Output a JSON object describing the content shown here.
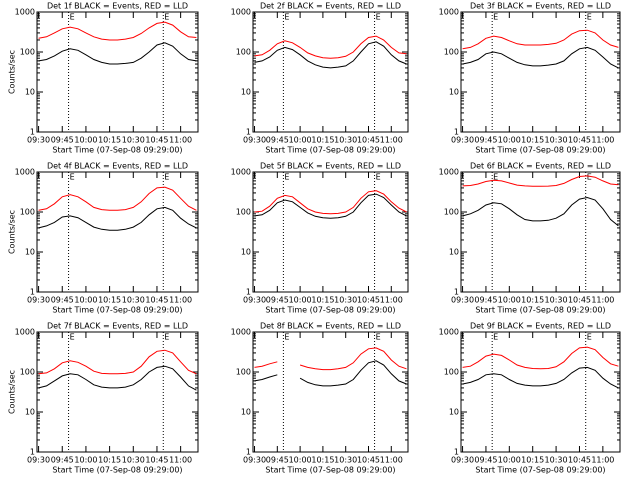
{
  "chart_data": [
    {
      "type": "line",
      "title": "Det 1f BLACK = Events, RED = LLD",
      "xlabel": "Start Time (07-Sep-08 09:29:00)",
      "ylabel": "Counts/sec",
      "ylog": true,
      "xlim": [
        "09:29",
        "11:11"
      ],
      "xticks": [
        "09:30",
        "09:45",
        "10:00",
        "10:15",
        "10:30",
        "10:45",
        "11:00"
      ],
      "ylim": [
        1,
        1000
      ],
      "yticks": [
        1,
        10,
        100,
        1000
      ],
      "annotations": [
        {
          "x": "09:49",
          "text": "E"
        },
        {
          "x": "10:49",
          "text": "E"
        }
      ],
      "x": [
        "09:30",
        "09:35",
        "09:40",
        "09:45",
        "09:50",
        "09:55",
        "10:00",
        "10:05",
        "10:10",
        "10:15",
        "10:20",
        "10:25",
        "10:30",
        "10:35",
        "10:40",
        "10:45",
        "10:50",
        "10:55",
        "11:00",
        "11:05",
        "11:10"
      ],
      "series": [
        {
          "color": "#000000",
          "values": [
            60,
            65,
            80,
            105,
            120,
            110,
            85,
            65,
            55,
            50,
            50,
            52,
            55,
            70,
            100,
            150,
            170,
            140,
            90,
            65,
            60
          ]
        },
        {
          "color": "#ff0000",
          "values": [
            220,
            240,
            300,
            380,
            420,
            380,
            300,
            240,
            210,
            200,
            200,
            210,
            230,
            290,
            400,
            520,
            560,
            470,
            320,
            240,
            230
          ]
        }
      ]
    },
    {
      "type": "line",
      "title": "Det 2f BLACK = Events, RED = LLD",
      "xlabel": "Start Time (07-Sep-08 09:29:00)",
      "ylog": true,
      "xlim": [
        "09:29",
        "11:11"
      ],
      "xticks": [
        "09:30",
        "09:45",
        "10:00",
        "10:15",
        "10:30",
        "10:45",
        "11:00"
      ],
      "ylim": [
        1,
        1000
      ],
      "yticks": [
        1,
        10,
        100,
        1000
      ],
      "annotations": [
        {
          "x": "09:49",
          "text": "E"
        },
        {
          "x": "10:49",
          "text": "E"
        }
      ],
      "x": [
        "09:30",
        "09:35",
        "09:40",
        "09:45",
        "09:50",
        "09:55",
        "10:00",
        "10:05",
        "10:10",
        "10:15",
        "10:20",
        "10:25",
        "10:30",
        "10:35",
        "10:40",
        "10:45",
        "10:50",
        "10:55",
        "11:00",
        "11:05",
        "11:10"
      ],
      "series": [
        {
          "color": "#000000",
          "values": [
            55,
            60,
            75,
            110,
            130,
            115,
            85,
            60,
            48,
            42,
            40,
            42,
            45,
            60,
            100,
            160,
            180,
            140,
            85,
            60,
            50
          ]
        },
        {
          "color": "#ff0000",
          "values": [
            80,
            85,
            110,
            160,
            190,
            170,
            130,
            95,
            80,
            72,
            70,
            72,
            78,
            100,
            160,
            230,
            250,
            200,
            130,
            95,
            90
          ]
        }
      ]
    },
    {
      "type": "line",
      "title": "Det 3f BLACK = Events, RED = LLD",
      "xlabel": "Start Time (07-Sep-08 09:29:00)",
      "ylog": true,
      "xlim": [
        "09:29",
        "11:11"
      ],
      "xticks": [
        "09:30",
        "09:45",
        "10:00",
        "10:15",
        "10:30",
        "10:45",
        "11:00"
      ],
      "ylim": [
        1,
        1000
      ],
      "yticks": [
        1,
        10,
        100,
        1000
      ],
      "annotations": [
        {
          "x": "09:49",
          "text": "E"
        },
        {
          "x": "10:49",
          "text": "E"
        }
      ],
      "x": [
        "09:30",
        "09:35",
        "09:40",
        "09:45",
        "09:50",
        "09:55",
        "10:00",
        "10:05",
        "10:10",
        "10:15",
        "10:20",
        "10:25",
        "10:30",
        "10:35",
        "10:40",
        "10:45",
        "10:50",
        "10:55",
        "11:00",
        "11:05",
        "11:10"
      ],
      "series": [
        {
          "color": "#000000",
          "values": [
            50,
            55,
            65,
            90,
            100,
            90,
            70,
            55,
            48,
            45,
            45,
            47,
            50,
            60,
            90,
            120,
            130,
            110,
            75,
            50,
            40
          ]
        },
        {
          "color": "#ff0000",
          "values": [
            120,
            130,
            160,
            220,
            250,
            230,
            190,
            160,
            150,
            150,
            150,
            155,
            165,
            200,
            280,
            340,
            350,
            300,
            200,
            150,
            130
          ]
        }
      ]
    },
    {
      "type": "line",
      "title": "Det 4f BLACK = Events, RED = LLD",
      "xlabel": "Start Time (07-Sep-08 09:29:00)",
      "ylabel": "Counts/sec",
      "ylog": true,
      "xlim": [
        "09:29",
        "11:11"
      ],
      "xticks": [
        "09:30",
        "09:45",
        "10:00",
        "10:15",
        "10:30",
        "10:45",
        "11:00"
      ],
      "ylim": [
        1,
        1000
      ],
      "yticks": [
        1,
        10,
        100,
        1000
      ],
      "annotations": [
        {
          "x": "09:49",
          "text": "E"
        },
        {
          "x": "10:49",
          "text": "E"
        }
      ],
      "x": [
        "09:30",
        "09:35",
        "09:40",
        "09:45",
        "09:50",
        "09:55",
        "10:00",
        "10:05",
        "10:10",
        "10:15",
        "10:20",
        "10:25",
        "10:30",
        "10:35",
        "10:40",
        "10:45",
        "10:50",
        "10:55",
        "11:00",
        "11:05",
        "11:10"
      ],
      "series": [
        {
          "color": "#000000",
          "values": [
            40,
            45,
            55,
            75,
            80,
            72,
            55,
            42,
            37,
            35,
            35,
            37,
            42,
            55,
            85,
            120,
            130,
            110,
            70,
            50,
            40
          ]
        },
        {
          "color": "#ff0000",
          "values": [
            110,
            120,
            160,
            240,
            270,
            240,
            180,
            130,
            115,
            110,
            110,
            115,
            130,
            180,
            290,
            400,
            420,
            350,
            220,
            140,
            110
          ]
        }
      ]
    },
    {
      "type": "line",
      "title": "Det 5f BLACK = Events, RED = LLD",
      "xlabel": "Start Time (07-Sep-08 09:29:00)",
      "ylog": true,
      "xlim": [
        "09:29",
        "11:11"
      ],
      "xticks": [
        "09:30",
        "09:45",
        "10:00",
        "10:15",
        "10:30",
        "10:45",
        "11:00"
      ],
      "ylim": [
        1,
        1000
      ],
      "yticks": [
        1,
        10,
        100,
        1000
      ],
      "annotations": [
        {
          "x": "09:49",
          "text": "E"
        },
        {
          "x": "10:49",
          "text": "E"
        }
      ],
      "x": [
        "09:30",
        "09:35",
        "09:40",
        "09:45",
        "09:50",
        "09:55",
        "10:00",
        "10:05",
        "10:10",
        "10:15",
        "10:20",
        "10:25",
        "10:30",
        "10:35",
        "10:40",
        "10:45",
        "10:50",
        "10:55",
        "11:00",
        "11:05",
        "11:10"
      ],
      "series": [
        {
          "color": "#000000",
          "values": [
            80,
            85,
            110,
            170,
            200,
            180,
            130,
            95,
            78,
            72,
            70,
            72,
            78,
            100,
            170,
            260,
            280,
            230,
            150,
            100,
            80
          ]
        },
        {
          "color": "#ff0000",
          "values": [
            100,
            105,
            140,
            220,
            260,
            240,
            170,
            120,
            100,
            92,
            90,
            92,
            100,
            130,
            220,
            320,
            340,
            280,
            180,
            125,
            100
          ]
        }
      ]
    },
    {
      "type": "line",
      "title": "Det 6f BLACK = Events, RED = LLD",
      "xlabel": "Start Time (07-Sep-08 09:29:00)",
      "ylog": true,
      "xlim": [
        "09:29",
        "11:11"
      ],
      "xticks": [
        "09:30",
        "09:45",
        "10:00",
        "10:15",
        "10:30",
        "10:45",
        "11:00"
      ],
      "ylim": [
        1,
        1000
      ],
      "yticks": [
        1,
        10,
        100,
        1000
      ],
      "annotations": [
        {
          "x": "09:49",
          "text": "E"
        },
        {
          "x": "10:49",
          "text": "E"
        }
      ],
      "x": [
        "09:30",
        "09:35",
        "09:40",
        "09:45",
        "09:50",
        "09:55",
        "10:00",
        "10:05",
        "10:10",
        "10:15",
        "10:20",
        "10:25",
        "10:30",
        "10:35",
        "10:40",
        "10:45",
        "10:50",
        "10:55",
        "11:00",
        "11:05",
        "11:10"
      ],
      "series": [
        {
          "color": "#000000",
          "values": [
            80,
            90,
            110,
            150,
            170,
            160,
            120,
            85,
            65,
            60,
            60,
            62,
            70,
            90,
            150,
            210,
            230,
            200,
            120,
            65,
            45
          ]
        },
        {
          "color": "#ff0000",
          "values": [
            450,
            460,
            500,
            580,
            620,
            600,
            530,
            470,
            450,
            440,
            440,
            445,
            460,
            520,
            650,
            770,
            800,
            740,
            600,
            500,
            480
          ]
        }
      ]
    },
    {
      "type": "line",
      "title": "Det 7f BLACK = Events, RED = LLD",
      "xlabel": "Start Time (07-Sep-08 09:29:00)",
      "ylabel": "Counts/sec",
      "ylog": true,
      "xlim": [
        "09:29",
        "11:11"
      ],
      "xticks": [
        "09:30",
        "09:45",
        "10:00",
        "10:15",
        "10:30",
        "10:45",
        "11:00"
      ],
      "ylim": [
        1,
        1000
      ],
      "yticks": [
        1,
        10,
        100,
        1000
      ],
      "annotations": [
        {
          "x": "09:49",
          "text": "E"
        },
        {
          "x": "10:49",
          "text": "E"
        }
      ],
      "x": [
        "09:30",
        "09:35",
        "09:40",
        "09:45",
        "09:50",
        "09:55",
        "10:00",
        "10:05",
        "10:10",
        "10:15",
        "10:20",
        "10:25",
        "10:30",
        "10:35",
        "10:40",
        "10:45",
        "10:50",
        "10:55",
        "11:00",
        "11:05",
        "11:10"
      ],
      "series": [
        {
          "color": "#000000",
          "values": [
            40,
            45,
            60,
            80,
            90,
            85,
            65,
            48,
            42,
            40,
            40,
            42,
            48,
            65,
            100,
            130,
            140,
            120,
            75,
            45,
            35
          ]
        },
        {
          "color": "#ff0000",
          "values": [
            90,
            95,
            120,
            170,
            190,
            175,
            140,
            105,
            92,
            90,
            90,
            92,
            100,
            140,
            240,
            330,
            350,
            300,
            180,
            110,
            90
          ]
        }
      ]
    },
    {
      "type": "line",
      "title": "Det 8f BLACK = Events, RED = LLD",
      "xlabel": "Start Time (07-Sep-08 09:29:00)",
      "ylog": true,
      "xlim": [
        "09:29",
        "11:11"
      ],
      "xticks": [
        "09:30",
        "09:45",
        "10:00",
        "10:15",
        "10:30",
        "10:45",
        "11:00"
      ],
      "ylim": [
        1,
        1000
      ],
      "yticks": [
        1,
        10,
        100,
        1000
      ],
      "annotations": [
        {
          "x": "09:49",
          "text": "E"
        },
        {
          "x": "10:49",
          "text": "E"
        }
      ],
      "x": [
        "09:30",
        "09:35",
        "09:40",
        "09:45",
        "09:50",
        "09:55",
        "10:00",
        "10:05",
        "10:10",
        "10:15",
        "10:20",
        "10:25",
        "10:30",
        "10:35",
        "10:40",
        "10:45",
        "10:50",
        "10:55",
        "11:00",
        "11:05",
        "11:10"
      ],
      "series": [
        {
          "color": "#000000",
          "values": [
            60,
            65,
            75,
            85,
            null,
            null,
            70,
            55,
            48,
            45,
            45,
            47,
            50,
            65,
            110,
            170,
            190,
            150,
            90,
            60,
            50
          ]
        },
        {
          "color": "#ff0000",
          "values": [
            130,
            140,
            160,
            180,
            null,
            null,
            150,
            130,
            120,
            115,
            115,
            120,
            130,
            170,
            280,
            380,
            400,
            330,
            200,
            140,
            120
          ]
        }
      ]
    },
    {
      "type": "line",
      "title": "Det 9f BLACK = Events, RED = LLD",
      "xlabel": "Start Time (07-Sep-08 09:29:00)",
      "ylog": true,
      "xlim": [
        "09:29",
        "11:11"
      ],
      "xticks": [
        "09:30",
        "09:45",
        "10:00",
        "10:15",
        "10:30",
        "10:45",
        "11:00"
      ],
      "ylim": [
        1,
        1000
      ],
      "yticks": [
        1,
        10,
        100,
        1000
      ],
      "annotations": [
        {
          "x": "09:49",
          "text": "E"
        },
        {
          "x": "10:49",
          "text": "E"
        }
      ],
      "x": [
        "09:30",
        "09:35",
        "09:40",
        "09:45",
        "09:50",
        "09:55",
        "10:00",
        "10:05",
        "10:10",
        "10:15",
        "10:20",
        "10:25",
        "10:30",
        "10:35",
        "10:40",
        "10:45",
        "10:50",
        "10:55",
        "11:00",
        "11:05",
        "11:10"
      ],
      "series": [
        {
          "color": "#000000",
          "values": [
            50,
            55,
            65,
            85,
            90,
            85,
            65,
            52,
            47,
            45,
            45,
            47,
            52,
            65,
            95,
            125,
            130,
            110,
            70,
            50,
            40
          ]
        },
        {
          "color": "#ff0000",
          "values": [
            130,
            140,
            180,
            250,
            280,
            260,
            200,
            150,
            130,
            122,
            120,
            122,
            135,
            180,
            290,
            400,
            420,
            360,
            230,
            160,
            140
          ]
        }
      ]
    }
  ]
}
